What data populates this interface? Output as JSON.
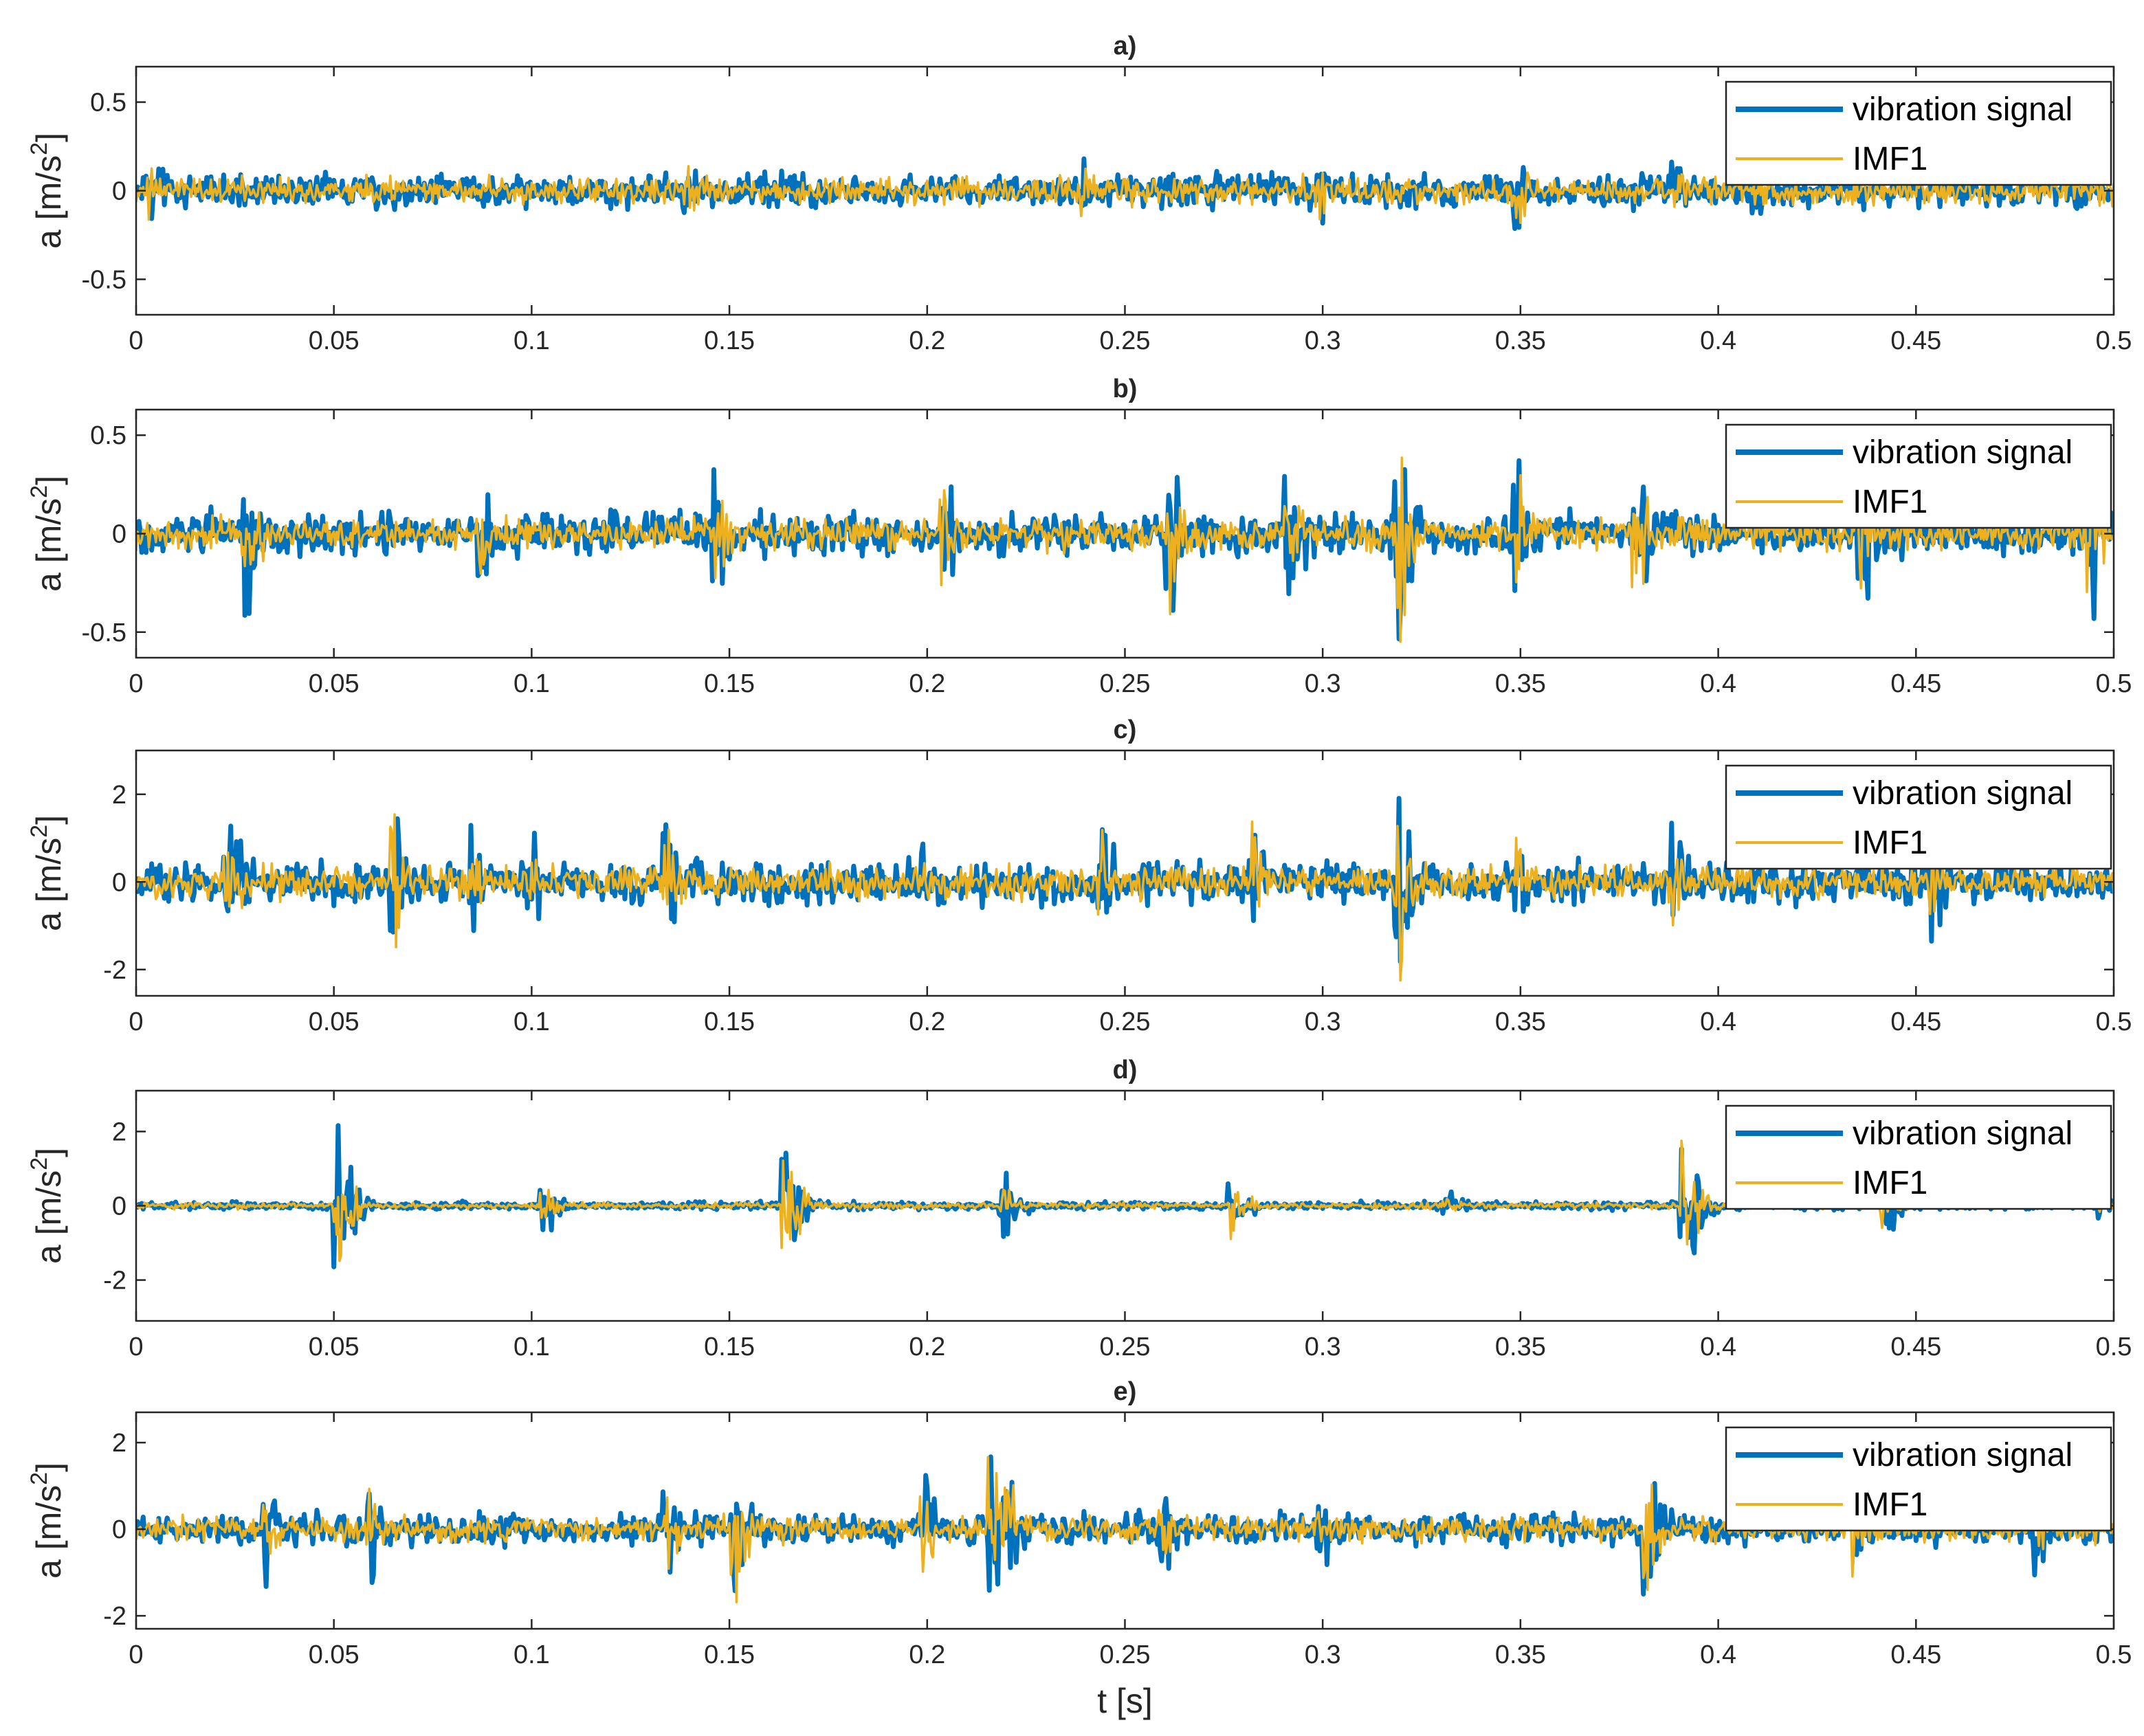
{
  "chart_data": [
    {
      "type": "line",
      "panel": "a)",
      "title": "a)",
      "xlabel": "",
      "ylabel": "a [m/s²]",
      "ylabel_base": "a [m/s",
      "ylabel_sup": "2",
      "ylabel_tail": "]",
      "xlim": [
        0,
        0.5
      ],
      "ylim": [
        -0.7,
        0.7
      ],
      "xticks": [
        0,
        0.05,
        0.1,
        0.15,
        0.2,
        0.25,
        0.3,
        0.35,
        0.4,
        0.45,
        0.5
      ],
      "xtick_labels": [
        "0",
        "0.05",
        "0.1",
        "0.15",
        "0.2",
        "0.25",
        "0.3",
        "0.35",
        "0.4",
        "0.45",
        "0.5"
      ],
      "yticks": [
        -0.5,
        0,
        0.5
      ],
      "ytick_labels": [
        "-0.5",
        "0",
        "0.5"
      ],
      "legend": [
        "vibration signal",
        "IMF1"
      ],
      "legend_position": "top-right",
      "series": [
        {
          "name": "vibration signal",
          "color": "#0072BD",
          "noise": 0.09,
          "peak": 0.28,
          "bursts": [
            [
              0.005,
              0.25
            ],
            [
              0.06,
              0.15
            ],
            [
              0.14,
              0.2
            ],
            [
              0.24,
              0.22
            ],
            [
              0.3,
              0.2
            ],
            [
              0.35,
              0.3
            ],
            [
              0.39,
              0.18
            ],
            [
              0.41,
              0.2
            ],
            [
              0.49,
              0.18
            ]
          ]
        },
        {
          "name": "IMF1",
          "color": "#EDB120",
          "noise": 0.07,
          "peak": 0.18,
          "bursts": [
            [
              0.005,
              0.2
            ],
            [
              0.06,
              0.1
            ],
            [
              0.14,
              0.15
            ],
            [
              0.24,
              0.15
            ],
            [
              0.3,
              0.15
            ],
            [
              0.35,
              0.2
            ],
            [
              0.39,
              0.15
            ],
            [
              0.41,
              0.12
            ],
            [
              0.49,
              0.12
            ]
          ]
        }
      ]
    },
    {
      "type": "line",
      "panel": "b)",
      "title": "b)",
      "xlabel": "",
      "ylabel": "a [m/s²]",
      "ylabel_base": "a [m/s",
      "ylabel_sup": "2",
      "ylabel_tail": "]",
      "xlim": [
        0,
        0.5
      ],
      "ylim": [
        -0.63,
        0.63
      ],
      "xticks": [
        0,
        0.05,
        0.1,
        0.15,
        0.2,
        0.25,
        0.3,
        0.35,
        0.4,
        0.45,
        0.5
      ],
      "xtick_labels": [
        "0",
        "0.05",
        "0.1",
        "0.15",
        "0.2",
        "0.25",
        "0.3",
        "0.35",
        "0.4",
        "0.45",
        "0.5"
      ],
      "yticks": [
        -0.5,
        0,
        0.5
      ],
      "ytick_labels": [
        "-0.5",
        "0",
        "0.5"
      ],
      "legend": [
        "vibration signal",
        "IMF1"
      ],
      "legend_position": "top-right",
      "series": [
        {
          "name": "vibration signal",
          "color": "#0072BD",
          "noise": 0.1,
          "peak": 0.6,
          "bursts": [
            [
              0.029,
              0.5
            ],
            [
              0.088,
              0.4
            ],
            [
              0.147,
              0.45
            ],
            [
              0.205,
              0.45
            ],
            [
              0.262,
              0.45
            ],
            [
              0.292,
              0.6
            ],
            [
              0.32,
              0.63
            ],
            [
              0.35,
              0.4
            ],
            [
              0.38,
              0.5
            ],
            [
              0.437,
              0.55
            ],
            [
              0.495,
              0.5
            ]
          ]
        },
        {
          "name": "IMF1",
          "color": "#EDB120",
          "noise": 0.08,
          "peak": 0.55,
          "bursts": [
            [
              0.029,
              0.35
            ],
            [
              0.088,
              0.3
            ],
            [
              0.147,
              0.35
            ],
            [
              0.205,
              0.35
            ],
            [
              0.262,
              0.45
            ],
            [
              0.292,
              0.4
            ],
            [
              0.32,
              0.62
            ],
            [
              0.35,
              0.3
            ],
            [
              0.38,
              0.45
            ],
            [
              0.437,
              0.3
            ],
            [
              0.495,
              0.3
            ]
          ]
        }
      ]
    },
    {
      "type": "line",
      "panel": "c)",
      "title": "c)",
      "xlabel": "",
      "ylabel": "a [m/s²]",
      "ylabel_base": "a [m/s",
      "ylabel_sup": "2",
      "ylabel_tail": "]",
      "xlim": [
        0,
        0.5
      ],
      "ylim": [
        -2.6,
        3.0
      ],
      "xticks": [
        0,
        0.05,
        0.1,
        0.15,
        0.2,
        0.25,
        0.3,
        0.35,
        0.4,
        0.45,
        0.5
      ],
      "xtick_labels": [
        "0",
        "0.05",
        "0.1",
        "0.15",
        "0.2",
        "0.25",
        "0.3",
        "0.35",
        "0.4",
        "0.45",
        "0.5"
      ],
      "yticks": [
        -2,
        0,
        2
      ],
      "ytick_labels": [
        "-2",
        "0",
        "2"
      ],
      "legend": [
        "vibration signal",
        "IMF1"
      ],
      "legend_position": "top-right",
      "series": [
        {
          "name": "vibration signal",
          "color": "#0072BD",
          "noise": 0.45,
          "peak": 2.0,
          "bursts": [
            [
              0.024,
              2.2
            ],
            [
              0.066,
              1.8
            ],
            [
              0.086,
              1.6
            ],
            [
              0.1,
              1.5
            ],
            [
              0.135,
              2.0
            ],
            [
              0.2,
              1.0
            ],
            [
              0.245,
              2.0
            ],
            [
              0.283,
              1.4
            ],
            [
              0.32,
              2.9
            ],
            [
              0.35,
              1.2
            ],
            [
              0.39,
              1.4
            ],
            [
              0.455,
              2.2
            ]
          ]
        },
        {
          "name": "IMF1",
          "color": "#EDB120",
          "noise": 0.35,
          "peak": 1.6,
          "bursts": [
            [
              0.024,
              1.4
            ],
            [
              0.066,
              1.8
            ],
            [
              0.086,
              1.2
            ],
            [
              0.1,
              1.0
            ],
            [
              0.135,
              1.5
            ],
            [
              0.2,
              0.8
            ],
            [
              0.245,
              1.2
            ],
            [
              0.283,
              1.4
            ],
            [
              0.32,
              2.5
            ],
            [
              0.35,
              1.0
            ],
            [
              0.39,
              1.0
            ],
            [
              0.455,
              1.2
            ]
          ]
        }
      ]
    },
    {
      "type": "line",
      "panel": "d)",
      "title": "d)",
      "xlabel": "",
      "ylabel": "a [m/s²]",
      "ylabel_base": "a [m/s",
      "ylabel_sup": "2",
      "ylabel_tail": "]",
      "xlim": [
        0,
        0.5
      ],
      "ylim": [
        -3.1,
        3.1
      ],
      "xticks": [
        0,
        0.05,
        0.1,
        0.15,
        0.2,
        0.25,
        0.3,
        0.35,
        0.4,
        0.45,
        0.5
      ],
      "xtick_labels": [
        "0",
        "0.05",
        "0.1",
        "0.15",
        "0.2",
        "0.25",
        "0.3",
        "0.35",
        "0.4",
        "0.45",
        "0.5"
      ],
      "yticks": [
        -2,
        0,
        2
      ],
      "ytick_labels": [
        "-2",
        "0",
        "2"
      ],
      "legend": [
        "vibration signal",
        "IMF1"
      ],
      "legend_position": "top-right",
      "series": [
        {
          "name": "vibration signal",
          "color": "#0072BD",
          "noise": 0.1,
          "peak": 3.0,
          "bursts": [
            [
              0.052,
              2.8
            ],
            [
              0.104,
              0.9
            ],
            [
              0.165,
              3.0
            ],
            [
              0.22,
              1.3
            ],
            [
              0.278,
              1.4
            ],
            [
              0.332,
              0.6
            ],
            [
              0.392,
              3.0
            ],
            [
              0.443,
              1.1
            ],
            [
              0.498,
              0.5
            ]
          ]
        },
        {
          "name": "IMF1",
          "color": "#EDB120",
          "noise": 0.08,
          "peak": 2.3,
          "bursts": [
            [
              0.052,
              2.3
            ],
            [
              0.104,
              0.7
            ],
            [
              0.165,
              2.1
            ],
            [
              0.22,
              0.9
            ],
            [
              0.278,
              1.0
            ],
            [
              0.332,
              0.4
            ],
            [
              0.392,
              2.2
            ],
            [
              0.443,
              0.6
            ],
            [
              0.498,
              0.3
            ]
          ]
        }
      ]
    },
    {
      "type": "line",
      "panel": "e)",
      "title": "e)",
      "xlabel": "t [s]",
      "ylabel": "a [m/s²]",
      "ylabel_base": "a [m/s",
      "ylabel_sup": "2",
      "ylabel_tail": "]",
      "xlim": [
        0,
        0.5
      ],
      "ylim": [
        -2.3,
        2.7
      ],
      "xticks": [
        0,
        0.05,
        0.1,
        0.15,
        0.2,
        0.25,
        0.3,
        0.35,
        0.4,
        0.45,
        0.5
      ],
      "xtick_labels": [
        "0",
        "0.05",
        "0.1",
        "0.15",
        "0.2",
        "0.25",
        "0.3",
        "0.35",
        "0.4",
        "0.45",
        "0.5"
      ],
      "yticks": [
        -2,
        0,
        2
      ],
      "ytick_labels": [
        "-2",
        "0",
        "2"
      ],
      "legend": [
        "vibration signal",
        "IMF1"
      ],
      "legend_position": "top-right",
      "series": [
        {
          "name": "vibration signal",
          "color": "#0072BD",
          "noise": 0.35,
          "peak": 2.2,
          "bursts": [
            [
              0.034,
              1.3
            ],
            [
              0.06,
              1.5
            ],
            [
              0.135,
              1.3
            ],
            [
              0.152,
              2.2
            ],
            [
              0.2,
              1.3
            ],
            [
              0.217,
              2.6
            ],
            [
              0.22,
              2.3
            ],
            [
              0.26,
              1.3
            ],
            [
              0.3,
              1.1
            ],
            [
              0.383,
              2.2
            ],
            [
              0.435,
              1.4
            ],
            [
              0.48,
              1.4
            ]
          ]
        },
        {
          "name": "IMF1",
          "color": "#EDB120",
          "noise": 0.28,
          "peak": 1.9,
          "bursts": [
            [
              0.034,
              1.0
            ],
            [
              0.06,
              1.2
            ],
            [
              0.135,
              1.2
            ],
            [
              0.152,
              1.9
            ],
            [
              0.2,
              1.1
            ],
            [
              0.217,
              1.9
            ],
            [
              0.22,
              2.2
            ],
            [
              0.26,
              1.0
            ],
            [
              0.3,
              0.9
            ],
            [
              0.383,
              1.8
            ],
            [
              0.435,
              1.1
            ],
            [
              0.48,
              1.1
            ]
          ]
        }
      ]
    }
  ]
}
